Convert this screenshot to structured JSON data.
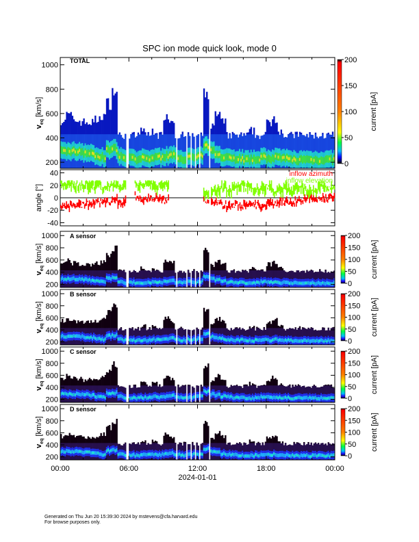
{
  "title": "SPC ion mode quick look, mode 0",
  "footer": {
    "generated": "Generated on Thu Jun 20 15:39:30 2024 by mstevens@cfa.harvard.edu",
    "note": "For browse purposes only."
  },
  "colors": {
    "azimuth": "#ff0000",
    "elevation": "#80ff00"
  },
  "chart_data": [
    {
      "type": "heatmap",
      "panel": "total",
      "label": "TOTAL",
      "ylabel": "v_eq [km/s]",
      "ylabel_main": "v",
      "ylabel_sub": "eq",
      "ylabel_unit": "[km/s]",
      "ylim": [
        150,
        1060
      ],
      "yticks": [
        200,
        400,
        600,
        800,
        1000
      ],
      "colorbar": {
        "label": "current [pA]",
        "range": [
          0,
          200
        ],
        "ticks": [
          0,
          50,
          100,
          150,
          200
        ]
      },
      "xlabel": "2024-01-01",
      "xticks": [
        "00:00",
        "06:00",
        "12:00",
        "18:00",
        "00:00"
      ],
      "x_hours": [
        0,
        0.5,
        1,
        1.5,
        2,
        2.5,
        3,
        3.5,
        4,
        4.5,
        5,
        5.5,
        6,
        6.5,
        7,
        7.5,
        8,
        8.5,
        9,
        9.5,
        10,
        10.5,
        11,
        11.5,
        12,
        12.5,
        13,
        13.5,
        14,
        14.5,
        15,
        15.5,
        16,
        16.5,
        17,
        17.5,
        18,
        18.5,
        19,
        19.5,
        20,
        20.5,
        21,
        21.5,
        22,
        22.5,
        23,
        23.5
      ],
      "upper_speed_kms": [
        560,
        600,
        560,
        550,
        540,
        540,
        560,
        600,
        700,
        800,
        430,
        430,
        430,
        430,
        480,
        430,
        470,
        430,
        600,
        560,
        430,
        430,
        430,
        430,
        430,
        770,
        520,
        600,
        540,
        430,
        430,
        430,
        430,
        470,
        430,
        430,
        540,
        580,
        470,
        430,
        430,
        440,
        430,
        430,
        430,
        430,
        430,
        430
      ],
      "peak_speed_kms": [
        290,
        290,
        290,
        290,
        280,
        270,
        250,
        240,
        300,
        310,
        250,
        230,
        230,
        220,
        230,
        230,
        240,
        240,
        250,
        260,
        240,
        230,
        240,
        240,
        250,
        330,
        290,
        270,
        250,
        240,
        230,
        230,
        220,
        220,
        230,
        240,
        230,
        240,
        230,
        230,
        220,
        220,
        220,
        220,
        220,
        220,
        220,
        220
      ],
      "data_gaps_hours": [
        [
          5.7,
          6.05
        ],
        [
          9.7,
          9.8
        ],
        [
          10.1,
          10.2
        ],
        [
          10.6,
          10.65
        ],
        [
          11.0,
          11.1
        ],
        [
          11.4,
          11.45
        ],
        [
          11.8,
          11.9
        ],
        [
          12.1,
          12.25
        ],
        [
          13.0,
          13.1
        ]
      ]
    },
    {
      "type": "line",
      "panel": "angle",
      "ylabel": "angle [°]",
      "ylim": [
        -45,
        45
      ],
      "yticks": [
        -40,
        -20,
        0,
        20,
        40
      ],
      "legend": [
        "inflow azimuth",
        "inflow elevation"
      ],
      "legend_visible": [
        "inflow azimuth",
        "inflow elevation"
      ],
      "legend_position": "top-right",
      "x_hours": [
        0,
        0.5,
        1,
        1.5,
        2,
        2.5,
        3,
        3.5,
        4,
        4.5,
        5,
        5.5,
        6,
        6.5,
        7,
        7.5,
        8,
        8.5,
        9,
        9.5,
        10,
        10.5,
        11,
        11.5,
        12,
        12.5,
        13,
        13.5,
        14,
        14.5,
        15,
        15.5,
        16,
        16.5,
        17,
        17.5,
        18,
        18.5,
        19,
        19.5,
        20,
        20.5,
        21,
        21.5,
        22,
        22.5,
        23,
        23.5
      ],
      "series": [
        {
          "name": "inflow azimuth",
          "values": [
            -15,
            -14,
            -12,
            -11,
            -10,
            -9,
            -8,
            -6,
            -8,
            -5,
            -10,
            -4,
            null,
            1,
            -3,
            -2,
            -1,
            -2,
            -3,
            null,
            null,
            null,
            null,
            null,
            null,
            -5,
            -10,
            -8,
            -12,
            -14,
            -12,
            -15,
            -13,
            -10,
            -12,
            -14,
            -9,
            -10,
            -7,
            -8,
            -9,
            -6,
            -5,
            0,
            -3,
            -2,
            -4,
            0
          ]
        },
        {
          "name": "inflow elevation",
          "values": [
            22,
            22,
            20,
            18,
            20,
            20,
            22,
            15,
            20,
            22,
            18,
            22,
            null,
            22,
            20,
            20,
            18,
            22,
            22,
            null,
            null,
            null,
            null,
            null,
            null,
            5,
            10,
            12,
            18,
            8,
            15,
            20,
            16,
            12,
            14,
            16,
            18,
            10,
            14,
            16,
            12,
            15,
            18,
            12,
            10,
            18,
            15,
            16
          ]
        }
      ]
    },
    {
      "type": "heatmap",
      "panel": "sensor",
      "label": "A sensor",
      "ylim": [
        150,
        1070
      ],
      "yticks": [
        200,
        400,
        600,
        800,
        1000
      ],
      "colorbar": {
        "label": "current [pA]",
        "range": [
          0,
          200
        ],
        "ticks": [
          0,
          50,
          100,
          150,
          200
        ]
      }
    },
    {
      "type": "heatmap",
      "panel": "sensor",
      "label": "B sensor",
      "ylim": [
        150,
        1070
      ],
      "yticks": [
        200,
        400,
        600,
        800,
        1000
      ],
      "colorbar": {
        "label": "current [pA]",
        "range": [
          0,
          200
        ],
        "ticks": [
          0,
          50,
          100,
          150,
          200
        ]
      }
    },
    {
      "type": "heatmap",
      "panel": "sensor",
      "label": "C sensor",
      "ylim": [
        150,
        1070
      ],
      "yticks": [
        200,
        400,
        600,
        800,
        1000
      ],
      "colorbar": {
        "label": "current [pA]",
        "range": [
          0,
          200
        ],
        "ticks": [
          0,
          50,
          100,
          150,
          200
        ]
      }
    },
    {
      "type": "heatmap",
      "panel": "sensor",
      "label": "D sensor",
      "ylim": [
        150,
        1070
      ],
      "yticks": [
        200,
        400,
        600,
        800,
        1000
      ],
      "colorbar": {
        "label": "current [pA]",
        "range": [
          0,
          200
        ],
        "ticks": [
          0,
          50,
          100,
          150,
          200
        ]
      }
    }
  ]
}
